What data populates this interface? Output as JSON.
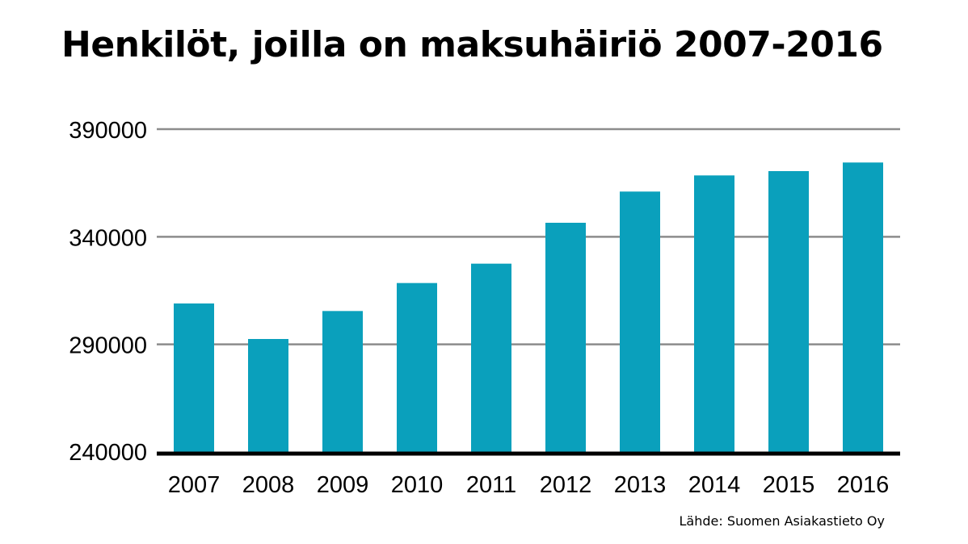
{
  "chart_data": {
    "type": "bar",
    "title": "Henkilöt, joilla on maksuhäiriö 2007-2016",
    "xlabel": "",
    "ylabel": "",
    "categories": [
      "2007",
      "2008",
      "2009",
      "2010",
      "2011",
      "2012",
      "2013",
      "2014",
      "2015",
      "2016"
    ],
    "values": [
      309000,
      292500,
      305500,
      318500,
      327500,
      346500,
      361000,
      368500,
      370500,
      374500
    ],
    "ylim": [
      240000,
      390000
    ],
    "yticks": [
      "240000",
      "290000",
      "340000",
      "390000"
    ],
    "grid": true,
    "legend": "none",
    "bar_color": "#0aa0bc",
    "gridline_color": "#8c8c8c",
    "baseline_color": "#000000",
    "source": "Lähde: Suomen Asiakastieto Oy"
  }
}
